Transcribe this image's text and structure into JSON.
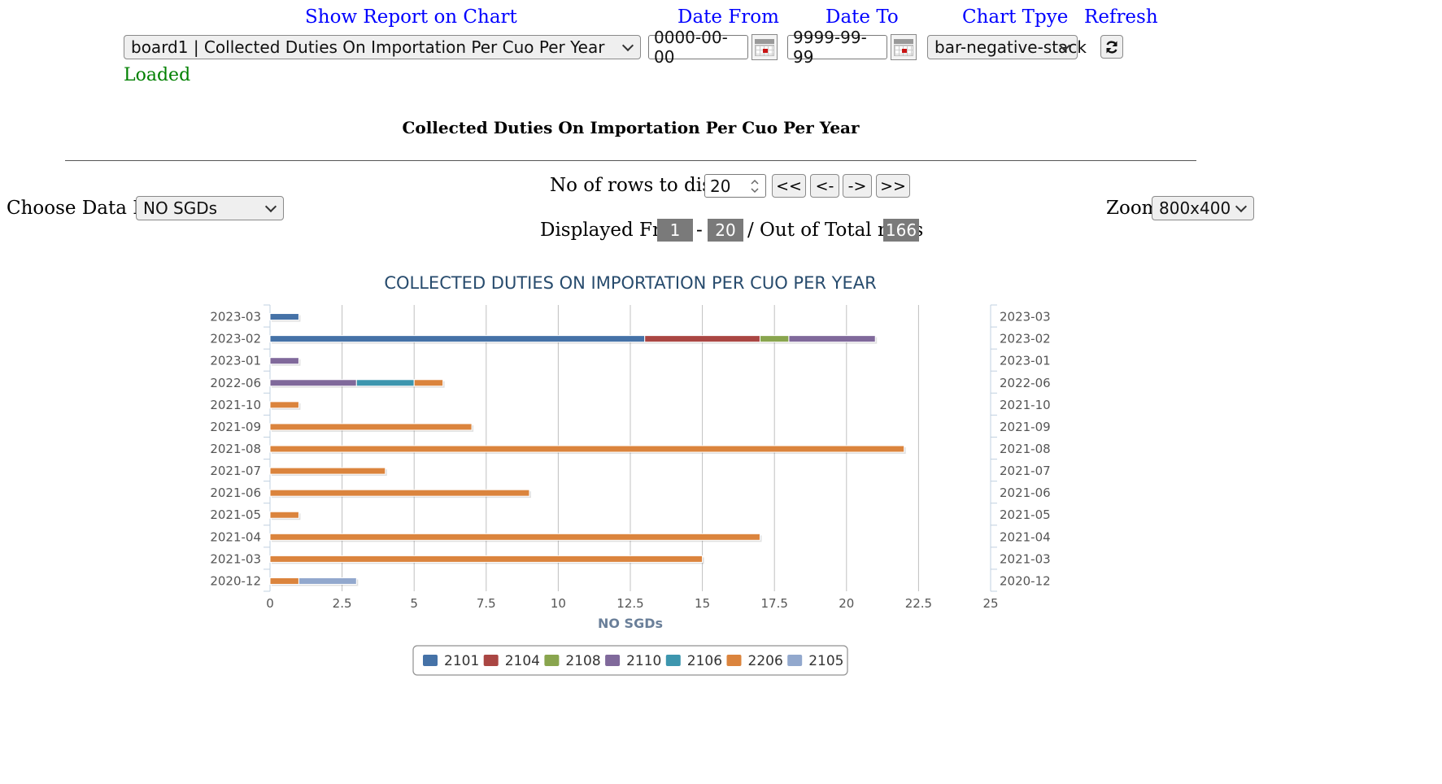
{
  "header": {
    "show_report_label": "Show Report on Chart",
    "date_from_label": "Date From",
    "date_to_label": "Date To",
    "chart_type_label": "Chart Tpye",
    "refresh_label": "Refresh",
    "report_select_value": "board1 | Collected Duties On Importation Per Cuo Per Year",
    "date_from_value": "0000-00-00",
    "date_to_value": "9999-99-99",
    "chart_type_value": "bar-negative-stack",
    "status": "Loaded"
  },
  "report_title": "Collected Duties On Importation Per Cuo Per Year",
  "controls": {
    "rows_label": "No of rows to display",
    "rows_value": "20",
    "first_label": "<<",
    "prev_label": "<-",
    "next_label": "->",
    "last_label": ">>",
    "data_list_label": "Choose Data List:",
    "data_list_value": "NO SGDs",
    "zoom_label": "Zoom",
    "zoom_value": "800x400",
    "displayed_from_label": "Displayed From",
    "from_value": "1",
    "dash": "-",
    "to_value": "20",
    "total_label": "/ Out of Total rows",
    "total_value": "166"
  },
  "chart_data": {
    "type": "bar",
    "stacked": true,
    "orientation": "horizontal",
    "title": "COLLECTED DUTIES ON IMPORTATION PER CUO PER YEAR",
    "xlabel": "NO SGDs",
    "xlim": [
      0,
      25
    ],
    "xticks": [
      "0",
      "2.5",
      "5",
      "7.5",
      "10",
      "12.5",
      "15",
      "17.5",
      "20",
      "22.5",
      "25"
    ],
    "categories": [
      "2023-03",
      "2023-02",
      "2023-01",
      "2022-06",
      "2021-10",
      "2021-09",
      "2021-08",
      "2021-07",
      "2021-06",
      "2021-05",
      "2021-04",
      "2021-03",
      "2020-12"
    ],
    "series": [
      {
        "name": "2101",
        "color": "#4572a7",
        "values": [
          1,
          13,
          0,
          0,
          0,
          0,
          0,
          0,
          0,
          0,
          0,
          0,
          0
        ]
      },
      {
        "name": "2104",
        "color": "#aa4643",
        "values": [
          0,
          4,
          0,
          0,
          0,
          0,
          0,
          0,
          0,
          0,
          0,
          0,
          0
        ]
      },
      {
        "name": "2108",
        "color": "#89a54e",
        "values": [
          0,
          1,
          0,
          0,
          0,
          0,
          0,
          0,
          0,
          0,
          0,
          0,
          0
        ]
      },
      {
        "name": "2110",
        "color": "#80699b",
        "values": [
          0,
          3,
          1,
          3,
          0,
          0,
          0,
          0,
          0,
          0,
          0,
          0,
          0
        ]
      },
      {
        "name": "2106",
        "color": "#3d96ae",
        "values": [
          0,
          0,
          0,
          2,
          0,
          0,
          0,
          0,
          0,
          0,
          0,
          0,
          0
        ]
      },
      {
        "name": "2206",
        "color": "#db843d",
        "values": [
          0,
          0,
          0,
          1,
          1,
          7,
          22,
          4,
          9,
          1,
          17,
          15,
          1
        ]
      },
      {
        "name": "2105",
        "color": "#92a8cd",
        "values": [
          0,
          0,
          0,
          0,
          0,
          0,
          0,
          0,
          0,
          0,
          0,
          0,
          2
        ]
      }
    ],
    "legend": "bottom",
    "grid": true
  }
}
